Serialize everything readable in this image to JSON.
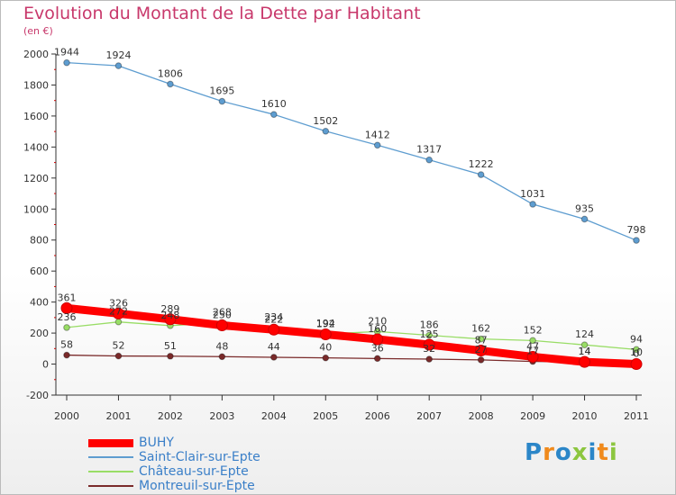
{
  "header": {
    "title": "Evolution du Montant de la Dette par Habitant",
    "subtitle": "(en €)"
  },
  "logo": {
    "text": "Proxiti",
    "colors": [
      "#2b86c8",
      "#f08a1c",
      "#2b86c8",
      "#8cc63f",
      "#2b86c8",
      "#f08a1c",
      "#8cc63f"
    ]
  },
  "chart_data": {
    "type": "line",
    "title": "Evolution du Montant de la Dette par Habitant",
    "subtitle": "(en €)",
    "xlabel": "",
    "ylabel": "",
    "x": [
      "2000",
      "2001",
      "2002",
      "2003",
      "2004",
      "2005",
      "2006",
      "2007",
      "2008",
      "2009",
      "2010",
      "2011"
    ],
    "ylim": [
      -200,
      2000
    ],
    "yticks": [
      "-200",
      "0",
      "200",
      "400",
      "600",
      "800",
      "1000",
      "1200",
      "1400",
      "1600",
      "1800",
      "2000"
    ],
    "grid": false,
    "legend_position": "bottom-left",
    "series": [
      {
        "name": "BUHY",
        "color": "#ff0000",
        "values": [
          361,
          326,
          289,
          250,
          222,
          192,
          160,
          125,
          87,
          47,
          14,
          0
        ],
        "labels": [
          "361",
          "326",
          "289",
          "250",
          "222",
          "192",
          "160",
          "125",
          "87",
          "47",
          "14",
          "0"
        ]
      },
      {
        "name": "Saint-Clair-sur-Epte",
        "color": "#5e9dd0",
        "values": [
          1944,
          1924,
          1806,
          1695,
          1610,
          1502,
          1412,
          1317,
          1222,
          1031,
          935,
          798
        ],
        "labels": [
          "1944",
          "1924",
          "1806",
          "1695",
          "1610",
          "1502",
          "1412",
          "1317",
          "1222",
          "1031",
          "935",
          "798"
        ]
      },
      {
        "name": "Château-sur-Epte",
        "color": "#99dd66",
        "values": [
          236,
          272,
          248,
          268,
          234,
          194,
          210,
          186,
          162,
          152,
          124,
          94
        ],
        "labels": [
          "236",
          "272",
          "248",
          "268",
          "234",
          "194",
          "210",
          "186",
          "162",
          "152",
          "124",
          "94"
        ]
      },
      {
        "name": "Montreuil-sur-Epte",
        "color": "#7a2a2a",
        "values": [
          58,
          52,
          51,
          48,
          44,
          40,
          36,
          32,
          27,
          17,
          14,
          10
        ],
        "labels": [
          "58",
          "52",
          "51",
          "48",
          "44",
          "40",
          "36",
          "32",
          "27",
          "17",
          "14",
          "10"
        ]
      }
    ]
  }
}
